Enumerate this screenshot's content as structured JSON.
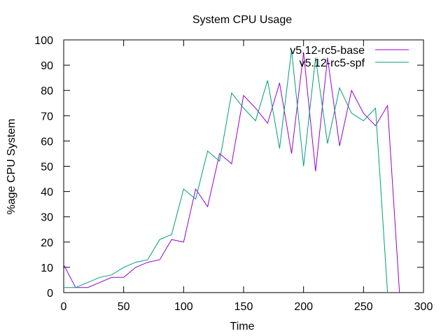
{
  "chart_data": {
    "type": "line",
    "title": "System CPU Usage",
    "xlabel": "Time",
    "ylabel": "%age CPU System",
    "xlim": [
      0,
      300
    ],
    "ylim": [
      0,
      100
    ],
    "xticks": [
      0,
      50,
      100,
      150,
      200,
      250,
      300
    ],
    "yticks": [
      0,
      10,
      20,
      30,
      40,
      50,
      60,
      70,
      80,
      90,
      100
    ],
    "grid": false,
    "legend_position": "top-right",
    "series": [
      {
        "name": "v5.12-rc5-base",
        "color": "#9400d3",
        "x": [
          0,
          10,
          20,
          30,
          40,
          50,
          60,
          70,
          80,
          90,
          100,
          110,
          120,
          130,
          140,
          150,
          160,
          170,
          180,
          190,
          200,
          210,
          220,
          230,
          240,
          250,
          260,
          270,
          280
        ],
        "y": [
          11,
          2,
          2,
          4,
          6,
          6,
          10,
          12,
          13,
          21,
          20,
          41,
          34,
          55,
          51,
          78,
          73,
          67,
          83,
          55,
          95,
          48,
          93,
          58,
          80,
          71,
          66,
          74,
          0
        ]
      },
      {
        "name": "v5.12-rc5-spf",
        "color": "#009e73",
        "x": [
          0,
          10,
          20,
          30,
          40,
          50,
          60,
          70,
          80,
          90,
          100,
          110,
          120,
          130,
          140,
          150,
          160,
          170,
          180,
          190,
          200,
          210,
          220,
          230,
          240,
          250,
          260,
          270
        ],
        "y": [
          2,
          2,
          4,
          6,
          7,
          10,
          12,
          13,
          21,
          23,
          41,
          37,
          56,
          52,
          79,
          73,
          68,
          84,
          57,
          96,
          50,
          93,
          59,
          81,
          71,
          68,
          73,
          0
        ]
      }
    ]
  }
}
